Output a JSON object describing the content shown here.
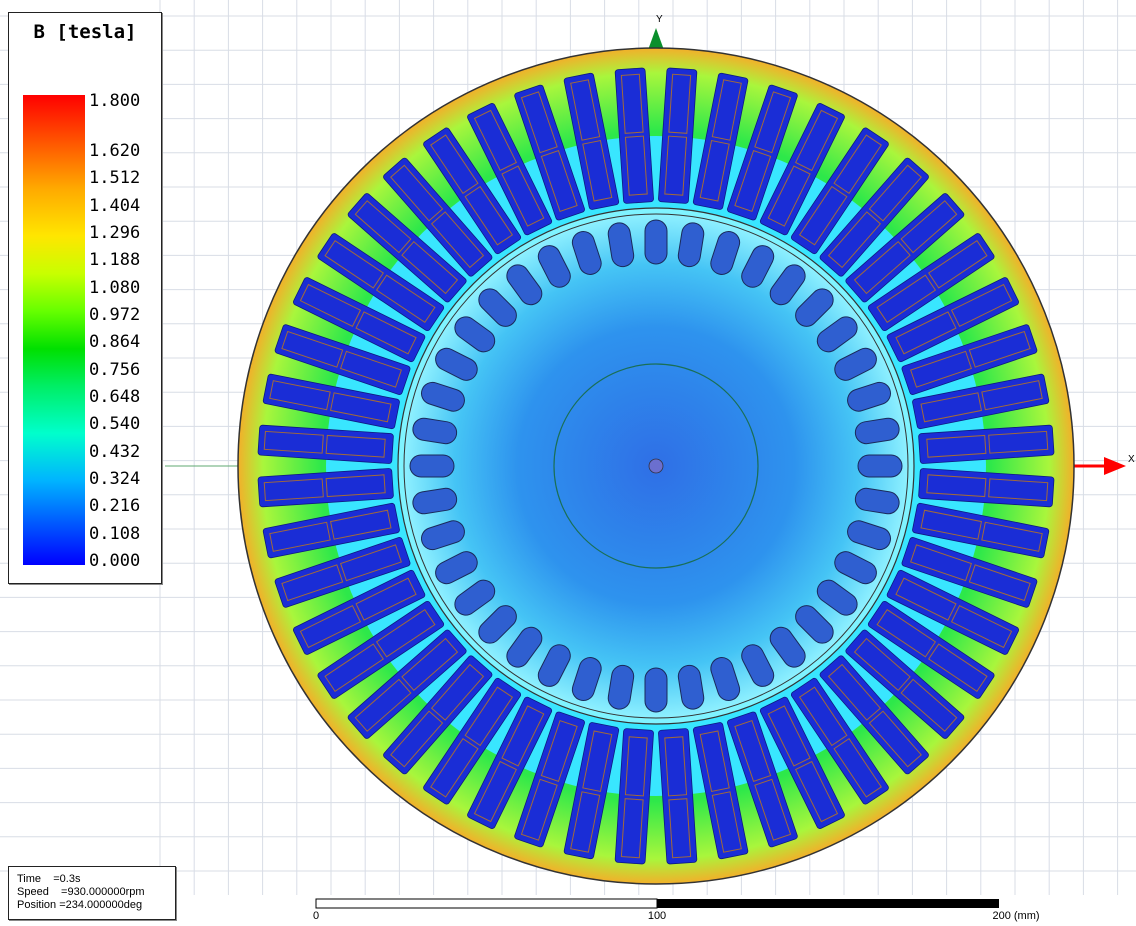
{
  "legend": {
    "title": "B [tesla]",
    "ticks": [
      "1.800",
      "1.620",
      "1.512",
      "1.404",
      "1.296",
      "1.188",
      "1.080",
      "0.972",
      "0.864",
      "0.756",
      "0.648",
      "0.540",
      "0.432",
      "0.324",
      "0.216",
      "0.108",
      "0.000"
    ]
  },
  "axes": {
    "y_label": "Y",
    "x_label": "X"
  },
  "status": {
    "time": "Time    =0.3s",
    "speed": "Speed    =930.000000rpm",
    "position": "Position =234.000000deg"
  },
  "scale_bar": {
    "labels": [
      "0",
      "100",
      "200 (mm)"
    ]
  },
  "model": {
    "stator_slots": 48,
    "rotor_bars": 40
  },
  "colors": {
    "stator_yoke": "#2de84a",
    "tooth": "#39e6ff",
    "slot": "#1a2dd6",
    "rotor": "#3ab0f0",
    "axis_x": "#ff0000",
    "axis_y": "#0a8f2c"
  }
}
